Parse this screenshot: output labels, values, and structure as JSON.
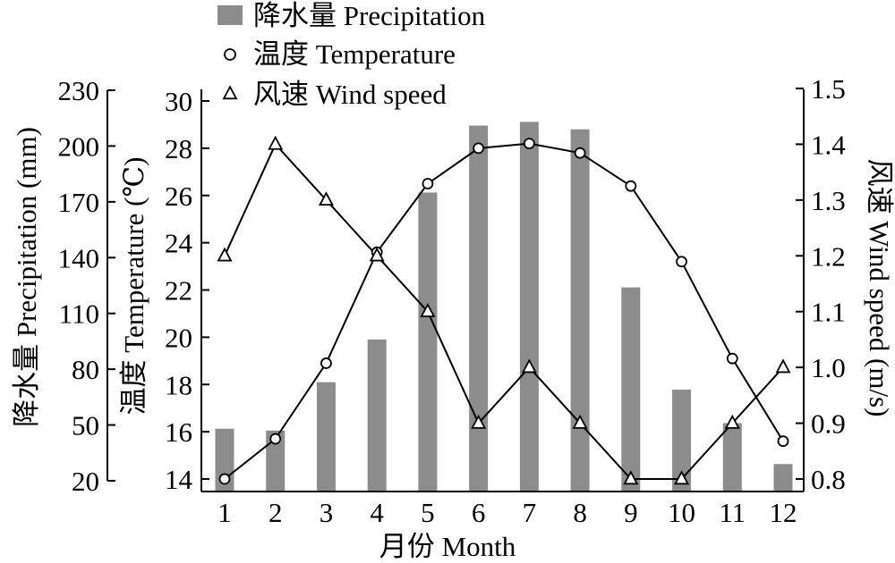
{
  "chart_data": {
    "type": "bar",
    "categories": [
      "1",
      "2",
      "3",
      "4",
      "5",
      "6",
      "7",
      "8",
      "9",
      "10",
      "11",
      "12"
    ],
    "xlabel": "月份 Month",
    "series": [
      {
        "name": "降水量 Precipitation",
        "type": "bar",
        "axis": "left1",
        "values": [
          48,
          47,
          73,
          96,
          175,
          211,
          213,
          209,
          124,
          69,
          51,
          29
        ]
      },
      {
        "name": "温度 Temperature",
        "type": "line",
        "marker": "circle",
        "axis": "left2",
        "values": [
          14.0,
          15.7,
          18.9,
          23.6,
          26.5,
          28.0,
          28.2,
          27.8,
          26.4,
          23.2,
          19.1,
          15.6
        ]
      },
      {
        "name": "风速 Wind speed",
        "type": "line",
        "marker": "triangle",
        "axis": "right",
        "values": [
          1.2,
          1.4,
          1.3,
          1.2,
          1.1,
          0.9,
          1.0,
          0.9,
          0.8,
          0.8,
          0.9,
          1.0
        ]
      }
    ],
    "axes": {
      "left1": {
        "label": "降水量 Precipitation (mm)",
        "ylim": [
          20,
          230
        ],
        "ticks": [
          20,
          50,
          80,
          110,
          140,
          170,
          200,
          230
        ]
      },
      "left2": {
        "label": "温度 Temperature (℃)",
        "ylim": [
          13.5,
          30.5
        ],
        "ticks": [
          14,
          16,
          18,
          20,
          22,
          24,
          26,
          28,
          30
        ]
      },
      "right": {
        "label": "风速 Wind speed (m/s)",
        "ylim": [
          0.8,
          1.5
        ],
        "ticks": [
          "0.8",
          "0.9",
          "1.0",
          "1.1",
          "1.2",
          "1.3",
          "1.4",
          "1.5"
        ]
      }
    },
    "legend": "top",
    "grid": false,
    "colors": {
      "bar": "#8c8c8c",
      "line": "#000000",
      "marker_fill": "#ffffff"
    }
  }
}
